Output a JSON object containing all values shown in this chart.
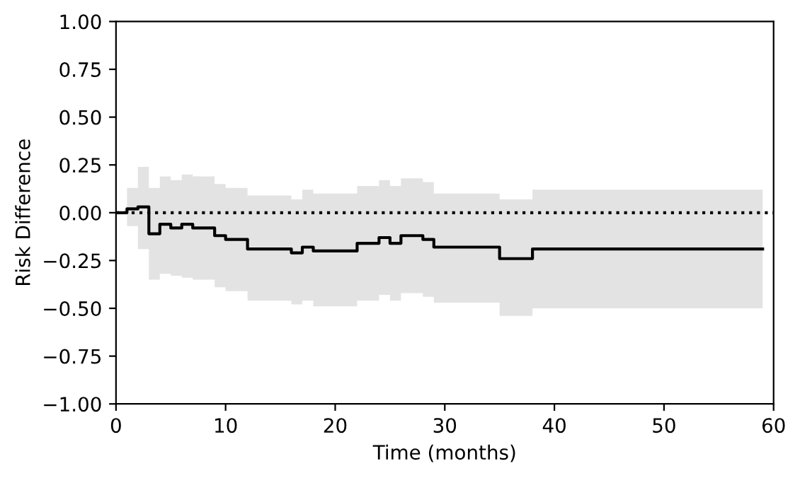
{
  "chart_data": {
    "type": "step",
    "xlabel": "Time (months)",
    "ylabel": "Risk Difference",
    "xlim": [
      0,
      60
    ],
    "ylim": [
      -1,
      1
    ],
    "xticks": [
      0,
      10,
      20,
      30,
      40,
      50,
      60
    ],
    "yticks": [
      {
        "value": -1,
        "label": "−1.00"
      },
      {
        "value": -0.75,
        "label": "−0.75"
      },
      {
        "value": -0.5,
        "label": "−0.50"
      },
      {
        "value": -0.25,
        "label": "−0.25"
      },
      {
        "value": 0,
        "label": "0.00"
      },
      {
        "value": 0.25,
        "label": "0.25"
      },
      {
        "value": 0.5,
        "label": "0.50"
      },
      {
        "value": 0.75,
        "label": "0.75"
      },
      {
        "value": 1,
        "label": "1.00"
      }
    ],
    "grid": false,
    "legend": false,
    "marker": "none",
    "series": [
      {
        "color": "#000000",
        "line_style": "solid",
        "x": [
          0,
          1,
          2,
          3,
          4,
          5,
          6,
          7,
          9,
          10,
          12,
          16,
          17,
          18,
          22,
          24,
          25,
          26,
          28,
          29,
          35,
          38,
          59
        ],
        "values": [
          0.0,
          0.02,
          0.03,
          -0.11,
          -0.06,
          -0.08,
          -0.06,
          -0.08,
          -0.12,
          -0.14,
          -0.19,
          -0.21,
          -0.18,
          -0.2,
          -0.16,
          -0.13,
          -0.16,
          -0.12,
          -0.14,
          -0.18,
          -0.24,
          -0.19,
          -0.19
        ],
        "upper": [
          null,
          0.13,
          0.24,
          0.13,
          0.19,
          0.17,
          0.2,
          0.19,
          0.15,
          0.13,
          0.09,
          0.07,
          0.12,
          0.1,
          0.14,
          0.17,
          0.14,
          0.18,
          0.16,
          0.1,
          0.07,
          0.12,
          0.12
        ],
        "lower": [
          null,
          -0.07,
          -0.19,
          -0.35,
          -0.32,
          -0.33,
          -0.34,
          -0.35,
          -0.39,
          -0.41,
          -0.46,
          -0.48,
          -0.46,
          -0.49,
          -0.46,
          -0.43,
          -0.46,
          -0.42,
          -0.44,
          -0.47,
          -0.54,
          -0.5,
          -0.5
        ]
      }
    ],
    "ref_lines": [
      {
        "axis": "y",
        "value": 0,
        "color": "#000000",
        "line_style": "dotted"
      }
    ]
  }
}
